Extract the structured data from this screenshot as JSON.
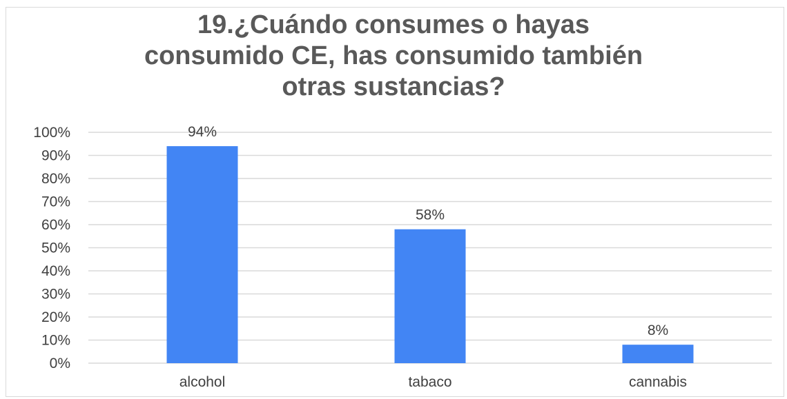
{
  "chart_data": {
    "type": "bar",
    "title_lines": [
      "19.¿Cuándo consumes o hayas",
      "consumido CE, has consumido también",
      "otras sustancias?"
    ],
    "categories": [
      "alcohol",
      "tabaco",
      "cannabis"
    ],
    "values": [
      94,
      58,
      8
    ],
    "data_labels": [
      "94%",
      "58%",
      "8%"
    ],
    "y_tick_labels": [
      "0%",
      "10%",
      "20%",
      "30%",
      "40%",
      "50%",
      "60%",
      "70%",
      "80%",
      "90%",
      "100%"
    ],
    "ylim": [
      0,
      100
    ],
    "grid": true,
    "legend": "none",
    "bar_color": "#4285f4",
    "grid_color": "#d9d9d9",
    "text_color": "#404040",
    "title_color": "#595959"
  }
}
